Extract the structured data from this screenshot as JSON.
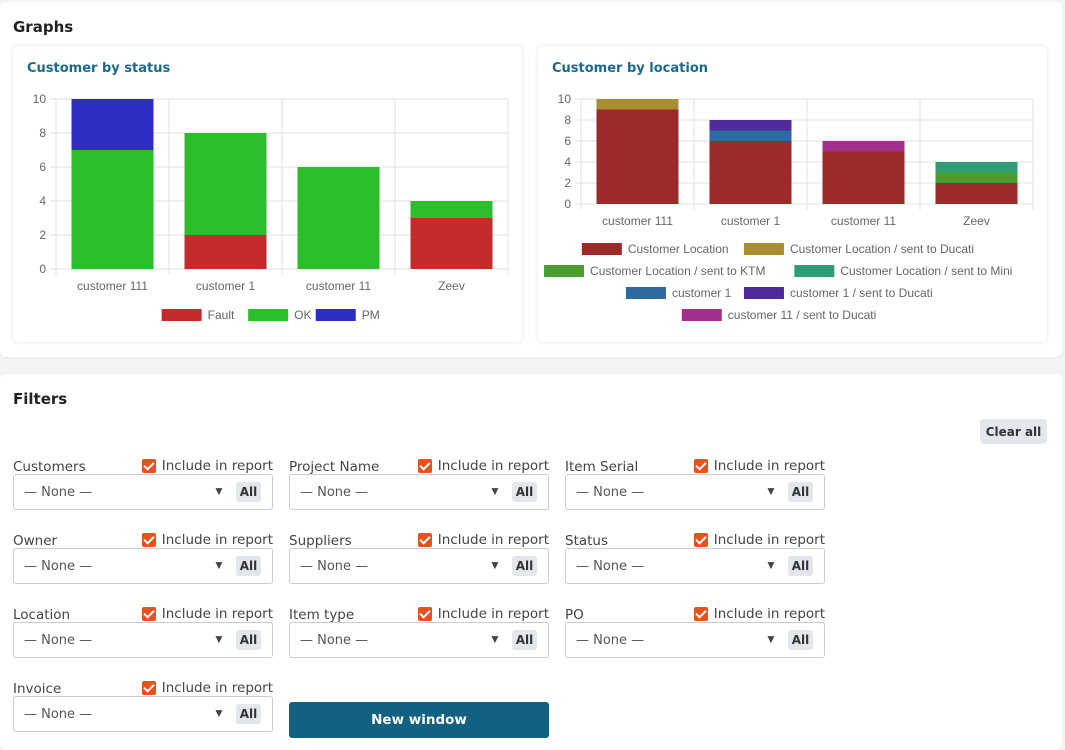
{
  "graphs": {
    "title": "Graphs",
    "status_card_title": "Customer by status",
    "location_card_title": "Customer by location"
  },
  "chart_data": [
    {
      "type": "bar",
      "stacked": true,
      "title": "Customer by status",
      "categories": [
        "customer 111",
        "customer 1",
        "customer 11",
        "Zeev"
      ],
      "series": [
        {
          "name": "Fault",
          "color": "#c42b2b",
          "values": [
            0,
            2,
            0,
            3
          ]
        },
        {
          "name": "OK",
          "color": "#2cbd2c",
          "values": [
            7,
            6,
            6,
            1
          ]
        },
        {
          "name": "PM",
          "color": "#2e2ec4",
          "values": [
            3,
            0,
            0,
            0
          ]
        }
      ],
      "ylim": [
        0,
        10
      ],
      "yticks": [
        0,
        2,
        4,
        6,
        8,
        10
      ],
      "grid": true,
      "legend": "bottom"
    },
    {
      "type": "bar",
      "stacked": true,
      "title": "Customer by location",
      "categories": [
        "customer 111",
        "customer 1",
        "customer 11",
        "Zeev"
      ],
      "series": [
        {
          "name": "Customer Location",
          "color": "#9c2a2a",
          "values": [
            9,
            6,
            5,
            2
          ]
        },
        {
          "name": "Customer Location / sent to Ducati",
          "color": "#a89030",
          "values": [
            1,
            0,
            0,
            0
          ]
        },
        {
          "name": "Customer Location / sent to KTM",
          "color": "#4a9e30",
          "values": [
            0,
            0,
            0,
            1
          ]
        },
        {
          "name": "Customer Location / sent to Mini",
          "color": "#2e9c74",
          "values": [
            0,
            0,
            0,
            1
          ]
        },
        {
          "name": "customer 1",
          "color": "#2e6aa0",
          "values": [
            0,
            1,
            0,
            0
          ]
        },
        {
          "name": "customer 1 / sent to Ducati",
          "color": "#4e2a9c",
          "values": [
            0,
            1,
            0,
            0
          ]
        },
        {
          "name": "customer 11 / sent to Ducati",
          "color": "#a0308c",
          "values": [
            0,
            0,
            1,
            0
          ]
        }
      ],
      "ylim": [
        0,
        10
      ],
      "yticks": [
        0,
        2,
        4,
        6,
        8,
        10
      ],
      "grid": true,
      "legend": "bottom"
    }
  ],
  "filters": {
    "title": "Filters",
    "clear_all": "Clear all",
    "include_label": "Include in report",
    "none_value": "— None —",
    "all_label": "All",
    "arrow": "▼",
    "new_window": "New window",
    "fields": [
      {
        "label": "Customers",
        "include": true
      },
      {
        "label": "Project Name",
        "include": true
      },
      {
        "label": "Item Serial",
        "include": true
      },
      {
        "label": "Owner",
        "include": true
      },
      {
        "label": "Suppliers",
        "include": true
      },
      {
        "label": "Status",
        "include": true
      },
      {
        "label": "Location",
        "include": true
      },
      {
        "label": "Item type",
        "include": true
      },
      {
        "label": "PO",
        "include": true
      },
      {
        "label": "Invoice",
        "include": true
      }
    ]
  }
}
